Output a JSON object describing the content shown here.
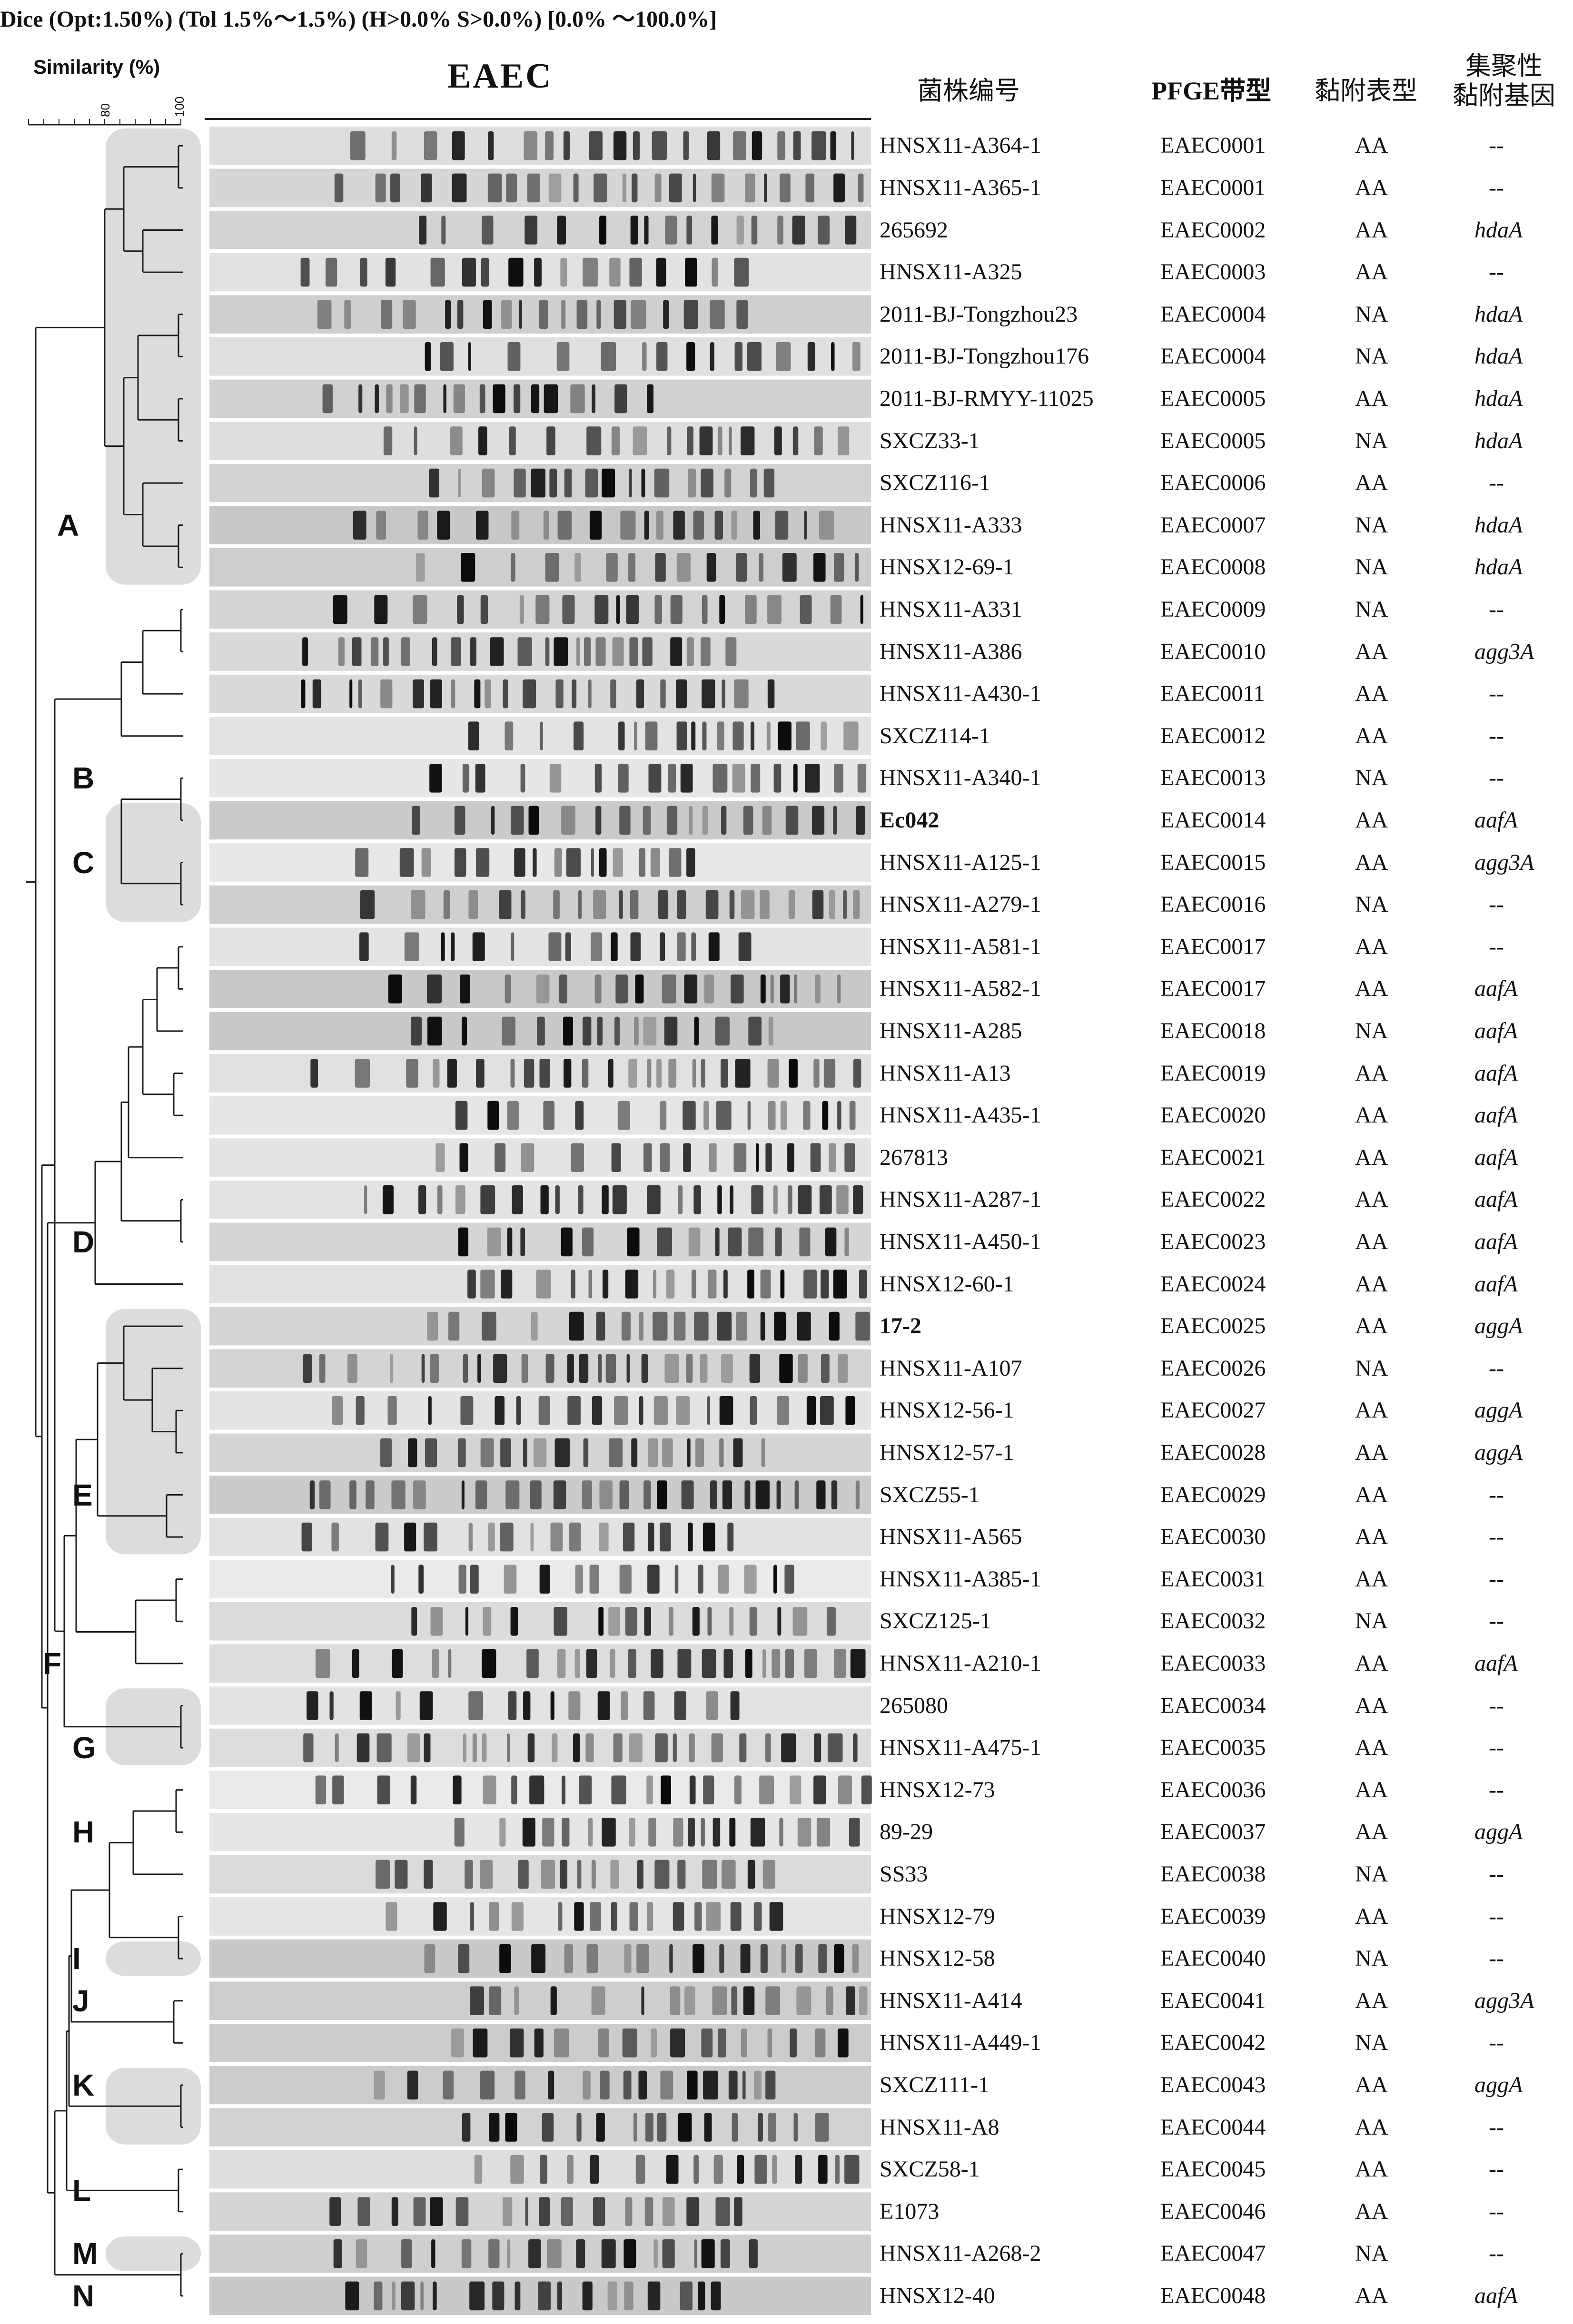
{
  "header": "Dice (Opt:1.50%) (Tol 1.5%～1.5%) (H>0.0% S>0.0%) [0.0% ～100.0%]",
  "similarity": {
    "label": "Similarity (%)",
    "ticks": [
      "80",
      "100"
    ]
  },
  "gel_title": "EAEC",
  "columns": {
    "strain": "菌株编号",
    "pfge": "PFGE带型",
    "adhesion": "黏附表型",
    "gene_line1": "集聚性",
    "gene_line2": "黏附基因"
  },
  "clusters": [
    "A",
    "B",
    "C",
    "D",
    "E",
    "F",
    "G",
    "H",
    "I",
    "J",
    "K",
    "L",
    "M",
    "N"
  ],
  "rows": [
    {
      "strain": "HNSX11-A364-1",
      "pfge": "EAEC0001",
      "adhesion": "AA",
      "gene": "--"
    },
    {
      "strain": "HNSX11-A365-1",
      "pfge": "EAEC0001",
      "adhesion": "AA",
      "gene": "--"
    },
    {
      "strain": "265692",
      "pfge": "EAEC0002",
      "adhesion": "AA",
      "gene": "hdaA"
    },
    {
      "strain": "HNSX11-A325",
      "pfge": "EAEC0003",
      "adhesion": "AA",
      "gene": "--"
    },
    {
      "strain": "2011-BJ-Tongzhou23",
      "pfge": "EAEC0004",
      "adhesion": "NA",
      "gene": "hdaA"
    },
    {
      "strain": "2011-BJ-Tongzhou176",
      "pfge": "EAEC0004",
      "adhesion": "NA",
      "gene": "hdaA"
    },
    {
      "strain": "2011-BJ-RMYY-11025",
      "pfge": "EAEC0005",
      "adhesion": "AA",
      "gene": "hdaA"
    },
    {
      "strain": "SXCZ33-1",
      "pfge": "EAEC0005",
      "adhesion": "NA",
      "gene": "hdaA"
    },
    {
      "strain": "SXCZ116-1",
      "pfge": "EAEC0006",
      "adhesion": "AA",
      "gene": "--"
    },
    {
      "strain": "HNSX11-A333",
      "pfge": "EAEC0007",
      "adhesion": "NA",
      "gene": "hdaA"
    },
    {
      "strain": "HNSX12-69-1",
      "pfge": "EAEC0008",
      "adhesion": "NA",
      "gene": "hdaA"
    },
    {
      "strain": "HNSX11-A331",
      "pfge": "EAEC0009",
      "adhesion": "NA",
      "gene": "--"
    },
    {
      "strain": "HNSX11-A386",
      "pfge": "EAEC0010",
      "adhesion": "AA",
      "gene": "agg3A"
    },
    {
      "strain": "HNSX11-A430-1",
      "pfge": "EAEC0011",
      "adhesion": "AA",
      "gene": "--"
    },
    {
      "strain": "SXCZ114-1",
      "pfge": "EAEC0012",
      "adhesion": "AA",
      "gene": "--"
    },
    {
      "strain": "HNSX11-A340-1",
      "pfge": "EAEC0013",
      "adhesion": "NA",
      "gene": "--"
    },
    {
      "strain": "Ec042",
      "pfge": "EAEC0014",
      "adhesion": "AA",
      "gene": "aafA",
      "bold": true
    },
    {
      "strain": "HNSX11-A125-1",
      "pfge": "EAEC0015",
      "adhesion": "AA",
      "gene": "agg3A"
    },
    {
      "strain": "HNSX11-A279-1",
      "pfge": "EAEC0016",
      "adhesion": "NA",
      "gene": "--"
    },
    {
      "strain": "HNSX11-A581-1",
      "pfge": "EAEC0017",
      "adhesion": "AA",
      "gene": "--"
    },
    {
      "strain": "HNSX11-A582-1",
      "pfge": "EAEC0017",
      "adhesion": "AA",
      "gene": "aafA"
    },
    {
      "strain": "HNSX11-A285",
      "pfge": "EAEC0018",
      "adhesion": "NA",
      "gene": "aafA"
    },
    {
      "strain": "HNSX11-A13",
      "pfge": "EAEC0019",
      "adhesion": "AA",
      "gene": "aafA"
    },
    {
      "strain": "HNSX11-A435-1",
      "pfge": "EAEC0020",
      "adhesion": "AA",
      "gene": "aafA"
    },
    {
      "strain": "267813",
      "pfge": "EAEC0021",
      "adhesion": "AA",
      "gene": "aafA"
    },
    {
      "strain": "HNSX11-A287-1",
      "pfge": "EAEC0022",
      "adhesion": "AA",
      "gene": "aafA"
    },
    {
      "strain": "HNSX11-A450-1",
      "pfge": "EAEC0023",
      "adhesion": "AA",
      "gene": "aafA"
    },
    {
      "strain": "HNSX12-60-1",
      "pfge": "EAEC0024",
      "adhesion": "AA",
      "gene": "aafA"
    },
    {
      "strain": "17-2",
      "pfge": "EAEC0025",
      "adhesion": "AA",
      "gene": "aggA",
      "bold": true
    },
    {
      "strain": "HNSX11-A107",
      "pfge": "EAEC0026",
      "adhesion": "NA",
      "gene": "--"
    },
    {
      "strain": "HNSX12-56-1",
      "pfge": "EAEC0027",
      "adhesion": "AA",
      "gene": "aggA"
    },
    {
      "strain": "HNSX12-57-1",
      "pfge": "EAEC0028",
      "adhesion": "AA",
      "gene": "aggA"
    },
    {
      "strain": "SXCZ55-1",
      "pfge": "EAEC0029",
      "adhesion": "AA",
      "gene": "--"
    },
    {
      "strain": "HNSX11-A565",
      "pfge": "EAEC0030",
      "adhesion": "AA",
      "gene": "--"
    },
    {
      "strain": "HNSX11-A385-1",
      "pfge": "EAEC0031",
      "adhesion": "AA",
      "gene": "--"
    },
    {
      "strain": "SXCZ125-1",
      "pfge": "EAEC0032",
      "adhesion": "NA",
      "gene": "--"
    },
    {
      "strain": "HNSX11-A210-1",
      "pfge": "EAEC0033",
      "adhesion": "AA",
      "gene": "aafA"
    },
    {
      "strain": "265080",
      "pfge": "EAEC0034",
      "adhesion": "AA",
      "gene": "--"
    },
    {
      "strain": "HNSX11-A475-1",
      "pfge": "EAEC0035",
      "adhesion": "AA",
      "gene": "--"
    },
    {
      "strain": "HNSX12-73",
      "pfge": "EAEC0036",
      "adhesion": "AA",
      "gene": "--"
    },
    {
      "strain": "89-29",
      "pfge": "EAEC0037",
      "adhesion": "AA",
      "gene": "aggA"
    },
    {
      "strain": "SS33",
      "pfge": "EAEC0038",
      "adhesion": "NA",
      "gene": "--"
    },
    {
      "strain": "HNSX12-79",
      "pfge": "EAEC0039",
      "adhesion": "AA",
      "gene": "--"
    },
    {
      "strain": "HNSX12-58",
      "pfge": "EAEC0040",
      "adhesion": "NA",
      "gene": "--"
    },
    {
      "strain": "HNSX11-A414",
      "pfge": "EAEC0041",
      "adhesion": "AA",
      "gene": "agg3A"
    },
    {
      "strain": "HNSX11-A449-1",
      "pfge": "EAEC0042",
      "adhesion": "NA",
      "gene": "--"
    },
    {
      "strain": "SXCZ111-1",
      "pfge": "EAEC0043",
      "adhesion": "AA",
      "gene": "aggA"
    },
    {
      "strain": "HNSX11-A8",
      "pfge": "EAEC0044",
      "adhesion": "AA",
      "gene": "--"
    },
    {
      "strain": "SXCZ58-1",
      "pfge": "EAEC0045",
      "adhesion": "AA",
      "gene": "--"
    },
    {
      "strain": "E1073",
      "pfge": "EAEC0046",
      "adhesion": "AA",
      "gene": "--"
    },
    {
      "strain": "HNSX11-A268-2",
      "pfge": "EAEC0047",
      "adhesion": "NA",
      "gene": "--"
    },
    {
      "strain": "HNSX12-40",
      "pfge": "EAEC0048",
      "adhesion": "AA",
      "gene": "aafA"
    }
  ]
}
